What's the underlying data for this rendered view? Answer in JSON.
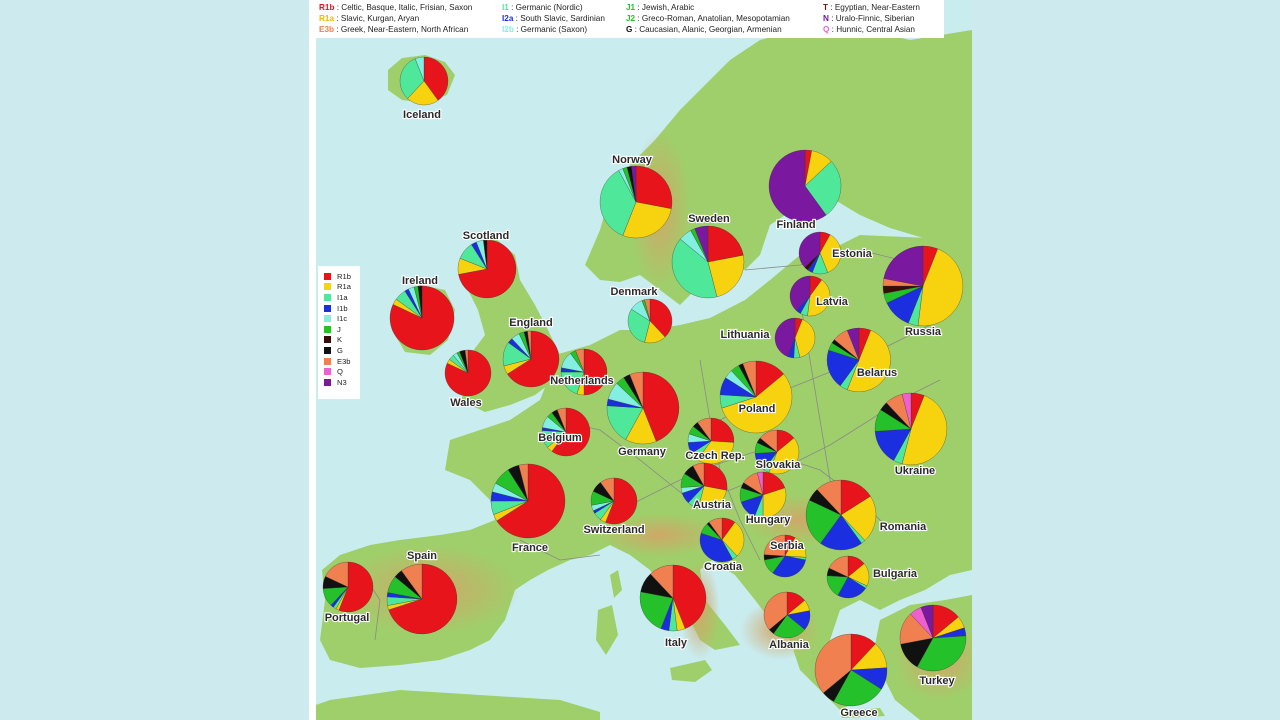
{
  "colors": {
    "sea": "#c9ecef",
    "land": "#9fcf6a",
    "mountain": "#d9c28a",
    "border": "#8a8a8a",
    "haplogroups": {
      "R1b": "#e8141b",
      "R1a": "#f7d20e",
      "I1a": "#4fe89a",
      "I1b": "#1c2fe0",
      "I1c": "#83efe0",
      "J": "#24c12a",
      "K": "#3a0c08",
      "G": "#111111",
      "E3b": "#f08050",
      "Q": "#f05fd0",
      "N3": "#7a18a0"
    }
  },
  "legend_top": {
    "col1": [
      {
        "code": "R1b",
        "code_color": "#e8141b",
        "text": ": Celtic, Basque, Italic, Frisian, Saxon"
      },
      {
        "code": "R1a",
        "code_color": "#f5b800",
        "text": ": Slavic, Kurgan, Aryan"
      },
      {
        "code": "E3b",
        "code_color": "#f08050",
        "text": ": Greek, Near-Eastern, North African"
      }
    ],
    "col2": [
      {
        "code": "I1",
        "code_color": "#4fe89a",
        "text": ": Germanic (Nordic)"
      },
      {
        "code": "I2a",
        "code_color": "#1c2fe0",
        "text": ": South Slavic, Sardinian"
      },
      {
        "code": "I2b",
        "code_color": "#83efe0",
        "text": ": Germanic (Saxon)"
      }
    ],
    "col3": [
      {
        "code": "J1",
        "code_color": "#24c12a",
        "text": ": Jewish, Arabic"
      },
      {
        "code": "J2",
        "code_color": "#24c12a",
        "text": ": Greco-Roman, Anatolian, Mesopotamian"
      },
      {
        "code": "G",
        "code_color": "#111111",
        "text": ": Caucasian, Alanic, Georgian, Armenian"
      }
    ],
    "col4": [
      {
        "code": "T",
        "code_color": "#5a1a10",
        "text": ": Egyptian, Near-Eastern"
      },
      {
        "code": "N",
        "code_color": "#7a18a0",
        "text": ": Uralo-Finnic, Siberian"
      },
      {
        "code": "Q",
        "code_color": "#f05fd0",
        "text": ": Hunnic, Central Asian"
      }
    ]
  },
  "side_legend": [
    {
      "label": "R1b",
      "color": "#e8141b"
    },
    {
      "label": "R1a",
      "color": "#f7d20e"
    },
    {
      "label": "I1a",
      "color": "#4fe89a"
    },
    {
      "label": "I1b",
      "color": "#1c2fe0"
    },
    {
      "label": "I1c",
      "color": "#83efe0"
    },
    {
      "label": "J",
      "color": "#24c12a"
    },
    {
      "label": "K",
      "color": "#3a0c08"
    },
    {
      "label": "G",
      "color": "#111111"
    },
    {
      "label": "E3b",
      "color": "#f08050"
    },
    {
      "label": "Q",
      "color": "#f05fd0"
    },
    {
      "label": "N3",
      "color": "#7a18a0"
    }
  ],
  "countries": [
    {
      "name": "Iceland",
      "shares": {
        "R1b": 40,
        "R1a": 22,
        "I1a": 32,
        "I1c": 6
      }
    },
    {
      "name": "Norway",
      "shares": {
        "R1b": 28,
        "R1a": 28,
        "I1a": 36,
        "I1c": 2,
        "J": 2,
        "G": 2,
        "N3": 2
      }
    },
    {
      "name": "Sweden",
      "shares": {
        "R1b": 22,
        "R1a": 24,
        "I1a": 40,
        "I1c": 6,
        "J": 2,
        "N3": 6
      }
    },
    {
      "name": "Finland",
      "shares": {
        "R1b": 3,
        "R1a": 10,
        "I1a": 27,
        "N3": 60
      }
    },
    {
      "name": "Estonia",
      "shares": {
        "R1b": 8,
        "R1a": 36,
        "I1a": 12,
        "I1b": 4,
        "K": 3,
        "N3": 37
      }
    },
    {
      "name": "Latvia",
      "shares": {
        "R1b": 10,
        "R1a": 42,
        "I1a": 6,
        "I1b": 4,
        "N3": 38
      }
    },
    {
      "name": "Lithuania",
      "shares": {
        "R1b": 6,
        "R1a": 40,
        "I1a": 5,
        "I1b": 5,
        "N3": 44
      }
    },
    {
      "name": "Russia",
      "shares": {
        "R1b": 6,
        "R1a": 46,
        "I1a": 4,
        "I1b": 12,
        "J": 4,
        "K": 3,
        "E3b": 3,
        "N3": 22
      }
    },
    {
      "name": "Scotland",
      "shares": {
        "R1b": 72,
        "R1a": 9,
        "I1a": 10,
        "I1b": 3,
        "I1c": 4,
        "G": 2
      }
    },
    {
      "name": "Ireland",
      "shares": {
        "R1b": 82,
        "R1a": 3,
        "I1a": 6,
        "I1b": 2,
        "I1c": 3,
        "J": 2,
        "G": 2
      }
    },
    {
      "name": "England",
      "shares": {
        "R1b": 66,
        "R1a": 5,
        "I1a": 14,
        "I1b": 3,
        "I1c": 5,
        "J": 3,
        "G": 2,
        "E3b": 2
      }
    },
    {
      "name": "Wales",
      "shares": {
        "R1b": 82,
        "R1a": 3,
        "I1a": 4,
        "I1c": 3,
        "J": 2,
        "G": 4,
        "E3b": 2
      }
    },
    {
      "name": "Denmark",
      "shares": {
        "R1b": 38,
        "R1a": 16,
        "I1a": 30,
        "I1c": 10,
        "J": 2,
        "E3b": 4
      }
    },
    {
      "name": "Netherlands",
      "shares": {
        "R1b": 50,
        "R1a": 5,
        "I1a": 20,
        "I1b": 3,
        "I1c": 12,
        "J": 4,
        "E3b": 6
      }
    },
    {
      "name": "Germany",
      "shares": {
        "R1b": 44,
        "R1a": 14,
        "I1a": 18,
        "I1b": 3,
        "I1c": 8,
        "J": 4,
        "G": 3,
        "E3b": 6
      }
    },
    {
      "name": "Belgium",
      "shares": {
        "R1b": 60,
        "R1a": 4,
        "I1a": 12,
        "I1b": 2,
        "I1c": 8,
        "J": 4,
        "G": 4,
        "E3b": 6
      }
    },
    {
      "name": "Poland",
      "shares": {
        "R1b": 14,
        "R1a": 56,
        "I1a": 6,
        "I1b": 8,
        "I1c": 4,
        "J": 4,
        "G": 2,
        "E3b": 6
      }
    },
    {
      "name": "Belarus",
      "shares": {
        "R1b": 6,
        "R1a": 50,
        "I1a": 4,
        "I1b": 20,
        "J": 4,
        "G": 2,
        "E3b": 8,
        "N3": 6
      }
    },
    {
      "name": "Ukraine",
      "shares": {
        "R1b": 6,
        "R1a": 48,
        "I1a": 4,
        "I1b": 16,
        "J": 10,
        "G": 4,
        "E3b": 8,
        "Q": 4
      }
    },
    {
      "name": "Czech Rep.",
      "shares": {
        "R1b": 26,
        "R1a": 34,
        "I1a": 6,
        "I1b": 8,
        "I1c": 6,
        "J": 6,
        "G": 4,
        "E3b": 10
      }
    },
    {
      "name": "Slovakia",
      "shares": {
        "R1b": 14,
        "R1a": 42,
        "I1a": 4,
        "I1b": 14,
        "J": 8,
        "G": 4,
        "E3b": 14
      }
    },
    {
      "name": "France",
      "shares": {
        "R1b": 66,
        "R1a": 3,
        "I1a": 6,
        "I1b": 4,
        "I1c": 4,
        "J": 8,
        "G": 5,
        "E3b": 4
      }
    },
    {
      "name": "Switzerland",
      "shares": {
        "R1b": 56,
        "R1a": 4,
        "I1a": 6,
        "I1b": 2,
        "I1c": 4,
        "J": 10,
        "G": 8,
        "E3b": 10
      }
    },
    {
      "name": "Austria",
      "shares": {
        "R1b": 28,
        "R1a": 26,
        "I1a": 8,
        "I1b": 8,
        "I1c": 4,
        "J": 10,
        "G": 8,
        "E3b": 8
      }
    },
    {
      "name": "Hungary",
      "shares": {
        "R1b": 20,
        "R1a": 30,
        "I1a": 6,
        "I1b": 14,
        "J": 10,
        "G": 4,
        "E3b": 12,
        "Q": 4
      }
    },
    {
      "name": "Romania",
      "shares": {
        "R1b": 16,
        "R1a": 22,
        "I1a": 2,
        "I1b": 20,
        "J": 22,
        "G": 6,
        "E3b": 12
      }
    },
    {
      "name": "Croatia",
      "shares": {
        "R1b": 10,
        "R1a": 28,
        "I1a": 4,
        "I1b": 38,
        "J": 8,
        "G": 2,
        "E3b": 10
      }
    },
    {
      "name": "Serbia",
      "shares": {
        "R1b": 8,
        "R1a": 18,
        "I1a": 2,
        "I1b": 32,
        "J": 12,
        "G": 4,
        "E3b": 24
      }
    },
    {
      "name": "Bulgaria",
      "shares": {
        "R1b": 14,
        "R1a": 18,
        "I1a": 2,
        "I1b": 24,
        "J": 18,
        "G": 6,
        "E3b": 18
      }
    },
    {
      "name": "Portugal",
      "shares": {
        "R1b": 56,
        "R1a": 2,
        "I1a": 2,
        "I1b": 2,
        "J": 12,
        "G": 8,
        "E3b": 18
      }
    },
    {
      "name": "Spain",
      "shares": {
        "R1b": 70,
        "R1a": 2,
        "I1a": 4,
        "I1b": 2,
        "J": 8,
        "G": 4,
        "E3b": 10
      }
    },
    {
      "name": "Italy",
      "shares": {
        "R1b": 44,
        "R1a": 4,
        "I1a": 4,
        "I1b": 4,
        "J": 22,
        "G": 10,
        "E3b": 12
      }
    },
    {
      "name": "Albania",
      "shares": {
        "R1b": 14,
        "R1a": 8,
        "I1b": 14,
        "J": 24,
        "G": 4,
        "E3b": 36
      }
    },
    {
      "name": "Greece",
      "shares": {
        "R1b": 12,
        "R1a": 12,
        "I1b": 10,
        "J": 24,
        "G": 6,
        "E3b": 36
      }
    },
    {
      "name": "Turkey",
      "shares": {
        "R1b": 14,
        "R1a": 6,
        "I1b": 4,
        "J": 34,
        "G": 14,
        "E3b": 16,
        "Q": 6,
        "N3": 6
      }
    }
  ]
}
